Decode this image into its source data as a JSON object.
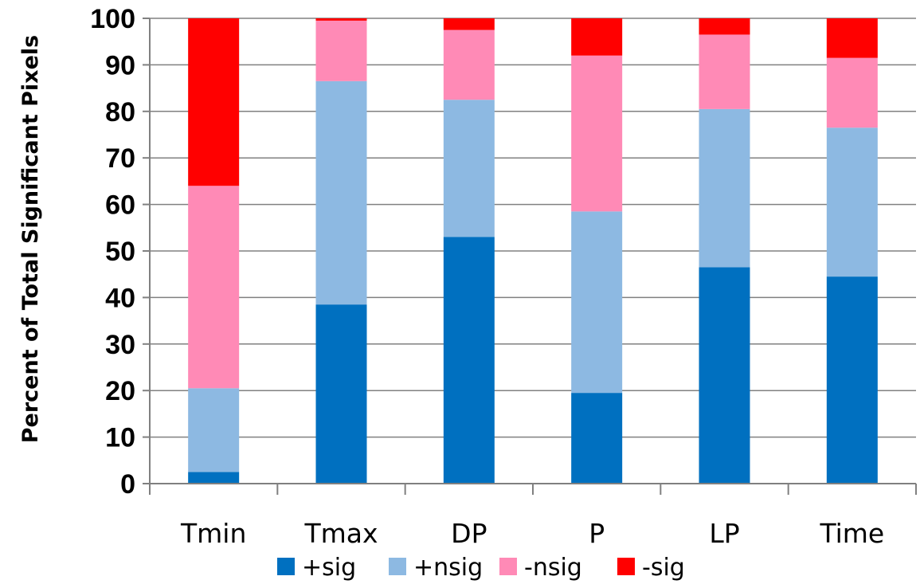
{
  "chart_data": {
    "type": "bar",
    "stacked": true,
    "ylabel": "Percent of Total Significant Pixels",
    "xlabel": "",
    "ylim": [
      0,
      100
    ],
    "yticks": [
      "0",
      "10",
      "20",
      "30",
      "40",
      "50",
      "60",
      "70",
      "80",
      "90",
      "100"
    ],
    "grid": true,
    "legend_position": "bottom",
    "categories": [
      "Tmin",
      "Tmax",
      "DP",
      "P",
      "LP",
      "Time"
    ],
    "series": [
      {
        "name": "+sig",
        "color": "#0070C0",
        "values": [
          2.5,
          38.5,
          53,
          19.5,
          46.5,
          44.5
        ]
      },
      {
        "name": "+nsig",
        "color": "#8DB9E2",
        "values": [
          18,
          48,
          29.5,
          39,
          34,
          32
        ]
      },
      {
        "name": "-nsig",
        "color": "#FF8AB6",
        "values": [
          43.5,
          13,
          15,
          33.5,
          16,
          15
        ]
      },
      {
        "name": "-sig",
        "color": "#FF0000",
        "values": [
          36,
          0.5,
          2.5,
          8,
          3.5,
          8.5
        ]
      }
    ]
  }
}
